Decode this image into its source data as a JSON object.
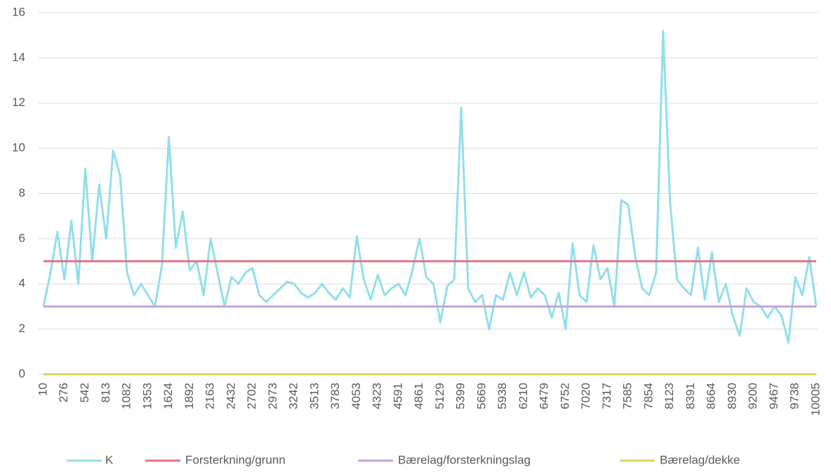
{
  "chart_data": {
    "type": "line",
    "categories": [
      "10",
      null,
      null,
      "276",
      null,
      null,
      "542",
      null,
      null,
      "813",
      null,
      null,
      "1082",
      null,
      null,
      "1353",
      null,
      null,
      "1624",
      null,
      null,
      "1892",
      null,
      null,
      "2163",
      null,
      null,
      "2432",
      null,
      null,
      "2702",
      null,
      null,
      "2973",
      null,
      null,
      "3242",
      null,
      null,
      "3513",
      null,
      null,
      "3783",
      null,
      null,
      "4053",
      null,
      null,
      "4323",
      null,
      null,
      "4591",
      null,
      null,
      "4861",
      null,
      null,
      "5129",
      null,
      null,
      "5399",
      null,
      null,
      "5669",
      null,
      null,
      "5938",
      null,
      null,
      "6210",
      null,
      null,
      "6479",
      null,
      null,
      "6752",
      null,
      null,
      "7020",
      null,
      null,
      "7317",
      null,
      null,
      "7585",
      null,
      null,
      "7854",
      null,
      null,
      "8123",
      null,
      null,
      "8391",
      null,
      null,
      "8664",
      null,
      null,
      "8930",
      null,
      null,
      "9200",
      null,
      null,
      "9467",
      null,
      null,
      "9738",
      null,
      null,
      "10005"
    ],
    "series": [
      {
        "name": "K",
        "color": "#92dfe9",
        "values": [
          3.0,
          4.5,
          6.3,
          4.2,
          6.8,
          4.0,
          9.1,
          5.0,
          8.4,
          6.0,
          9.9,
          8.8,
          4.5,
          3.5,
          4.0,
          3.5,
          3.0,
          4.8,
          10.5,
          5.6,
          7.2,
          4.6,
          5.0,
          3.5,
          6.0,
          4.5,
          3.0,
          4.3,
          4.0,
          4.5,
          4.7,
          3.5,
          3.2,
          3.5,
          3.8,
          4.1,
          4.0,
          3.6,
          3.4,
          3.6,
          4.0,
          3.6,
          3.3,
          3.8,
          3.4,
          6.1,
          4.2,
          3.3,
          4.4,
          3.5,
          3.8,
          4.0,
          3.5,
          4.6,
          6.0,
          4.3,
          4.0,
          2.3,
          3.9,
          4.2,
          11.8,
          3.8,
          3.2,
          3.5,
          2.0,
          3.5,
          3.3,
          4.5,
          3.5,
          4.5,
          3.4,
          3.8,
          3.5,
          2.5,
          3.6,
          2.0,
          5.8,
          3.5,
          3.2,
          5.7,
          4.2,
          4.7,
          3.0,
          7.7,
          7.5,
          5.2,
          3.8,
          3.5,
          4.5,
          15.2,
          7.6,
          4.2,
          3.8,
          3.5,
          5.6,
          3.3,
          5.4,
          3.2,
          4.0,
          2.6,
          1.7,
          3.8,
          3.2,
          3.0,
          2.5,
          3.0,
          2.6,
          1.4,
          4.3,
          3.5,
          5.2,
          3.0
        ]
      },
      {
        "name": "Forsterkning/grunn",
        "color": "#df7384",
        "values": [
          5,
          5,
          5,
          5,
          5,
          5,
          5,
          5,
          5,
          5,
          5,
          5,
          5,
          5,
          5,
          5,
          5,
          5,
          5,
          5,
          5,
          5,
          5,
          5,
          5,
          5,
          5,
          5,
          5,
          5,
          5,
          5,
          5,
          5,
          5,
          5,
          5,
          5,
          5,
          5,
          5,
          5,
          5,
          5,
          5,
          5,
          5,
          5,
          5,
          5,
          5,
          5,
          5,
          5,
          5,
          5,
          5,
          5,
          5,
          5,
          5,
          5,
          5,
          5,
          5,
          5,
          5,
          5,
          5,
          5,
          5,
          5,
          5,
          5,
          5,
          5,
          5,
          5,
          5,
          5,
          5,
          5,
          5,
          5,
          5,
          5,
          5,
          5,
          5,
          5,
          5,
          5,
          5,
          5,
          5,
          5,
          5,
          5,
          5,
          5,
          5,
          5,
          5,
          5,
          5,
          5,
          5,
          5,
          5,
          5,
          5,
          5
        ]
      },
      {
        "name": "Bærelag/forsterkningslag",
        "color": "#c9a3d9",
        "values": [
          3,
          3,
          3,
          3,
          3,
          3,
          3,
          3,
          3,
          3,
          3,
          3,
          3,
          3,
          3,
          3,
          3,
          3,
          3,
          3,
          3,
          3,
          3,
          3,
          3,
          3,
          3,
          3,
          3,
          3,
          3,
          3,
          3,
          3,
          3,
          3,
          3,
          3,
          3,
          3,
          3,
          3,
          3,
          3,
          3,
          3,
          3,
          3,
          3,
          3,
          3,
          3,
          3,
          3,
          3,
          3,
          3,
          3,
          3,
          3,
          3,
          3,
          3,
          3,
          3,
          3,
          3,
          3,
          3,
          3,
          3,
          3,
          3,
          3,
          3,
          3,
          3,
          3,
          3,
          3,
          3,
          3,
          3,
          3,
          3,
          3,
          3,
          3,
          3,
          3,
          3,
          3,
          3,
          3,
          3,
          3,
          3,
          3,
          3,
          3,
          3,
          3,
          3,
          3,
          3,
          3,
          3,
          3,
          3,
          3,
          3,
          3
        ]
      },
      {
        "name": "Bærelag/dekke",
        "color": "#e2d061",
        "values": [
          0,
          0,
          0,
          0,
          0,
          0,
          0,
          0,
          0,
          0,
          0,
          0,
          0,
          0,
          0,
          0,
          0,
          0,
          0,
          0,
          0,
          0,
          0,
          0,
          0,
          0,
          0,
          0,
          0,
          0,
          0,
          0,
          0,
          0,
          0,
          0,
          0,
          0,
          0,
          0,
          0,
          0,
          0,
          0,
          0,
          0,
          0,
          0,
          0,
          0,
          0,
          0,
          0,
          0,
          0,
          0,
          0,
          0,
          0,
          0,
          0,
          0,
          0,
          0,
          0,
          0,
          0,
          0,
          0,
          0,
          0,
          0,
          0,
          0,
          0,
          0,
          0,
          0,
          0,
          0,
          0,
          0,
          0,
          0,
          0,
          0,
          0,
          0,
          0,
          0,
          0,
          0,
          0,
          0,
          0,
          0,
          0,
          0,
          0,
          0,
          0,
          0,
          0,
          0,
          0,
          0,
          0,
          0,
          0,
          0,
          0,
          0
        ]
      }
    ],
    "ylim": [
      0,
      16
    ],
    "yticks": [
      0,
      2,
      4,
      6,
      8,
      10,
      12,
      14,
      16
    ],
    "grid": true,
    "legend": "bottom"
  }
}
